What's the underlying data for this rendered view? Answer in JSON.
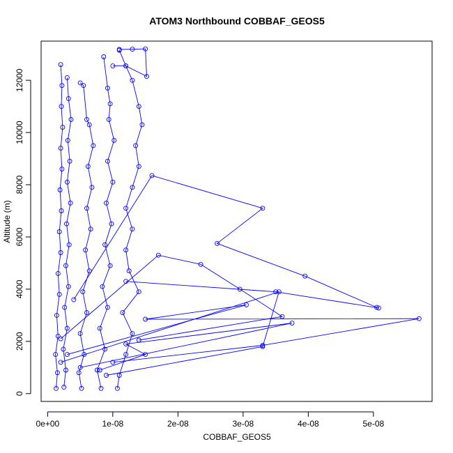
{
  "chart_data": {
    "type": "line",
    "title": "ATOM3 Northbound COBBAF_GEOS5",
    "xlabel": "COBBAF_GEOS5",
    "ylabel": "Altitude (m)",
    "xlim": [
      -1e-09,
      5.9e-08
    ],
    "ylim": [
      -300,
      13500
    ],
    "xticks": [
      0,
      1e-08,
      2e-08,
      3e-08,
      4e-08,
      5e-08
    ],
    "xtick_labels": [
      "0e+00",
      "1e-08",
      "2e-08",
      "3e-08",
      "4e-08",
      "5e-08"
    ],
    "yticks": [
      0,
      2000,
      4000,
      6000,
      8000,
      10000,
      12000
    ],
    "ytick_labels": [
      "0",
      "2000",
      "4000",
      "6000",
      "8000",
      "10000",
      "12000"
    ],
    "grid": false,
    "legend": "none",
    "series_color": "#0000ff",
    "marker": "open-circle",
    "series": [
      {
        "values": [
          [
            1.3e-09,
            200
          ],
          [
            1.5e-09,
            800
          ],
          [
            1.2e-09,
            1500
          ],
          [
            1.6e-09,
            2200
          ],
          [
            1.4e-09,
            3000
          ],
          [
            1.8e-09,
            3800
          ],
          [
            1.6e-09,
            4600
          ],
          [
            2e-09,
            5400
          ],
          [
            1.8e-09,
            6200
          ],
          [
            2.1e-09,
            7000
          ],
          [
            1.9e-09,
            7800
          ],
          [
            2.2e-09,
            8600
          ],
          [
            2e-09,
            9400
          ],
          [
            2.3e-09,
            10200
          ],
          [
            2.1e-09,
            11000
          ],
          [
            2.2e-09,
            11800
          ],
          [
            2e-09,
            12600
          ]
        ]
      },
      {
        "values": [
          [
            2.5e-09,
            250
          ],
          [
            2.8e-09,
            900
          ],
          [
            2.4e-09,
            1700
          ],
          [
            3e-09,
            2500
          ],
          [
            2.6e-09,
            3300
          ],
          [
            3.2e-09,
            4100
          ],
          [
            2.8e-09,
            4900
          ],
          [
            3.3e-09,
            5700
          ],
          [
            2.9e-09,
            6500
          ],
          [
            3.5e-09,
            7300
          ],
          [
            3e-09,
            8100
          ],
          [
            3.4e-09,
            8900
          ],
          [
            3.1e-09,
            9700
          ],
          [
            3.6e-09,
            10500
          ],
          [
            3.2e-09,
            11300
          ],
          [
            3e-09,
            12100
          ]
        ]
      },
      {
        "values": [
          [
            5.2e-09,
            200
          ],
          [
            4.8e-09,
            800
          ],
          [
            5.6e-09,
            1500
          ],
          [
            5e-09,
            2300
          ],
          [
            6e-09,
            3100
          ],
          [
            5.4e-09,
            3900
          ],
          [
            6.4e-09,
            4700
          ],
          [
            5.8e-09,
            5500
          ],
          [
            6.6e-09,
            6300
          ],
          [
            6e-09,
            7100
          ],
          [
            6.8e-09,
            7900
          ],
          [
            6.2e-09,
            8700
          ],
          [
            7e-09,
            9500
          ],
          [
            6.4e-09,
            10300
          ],
          [
            6e-09,
            10500
          ],
          [
            5.5e-09,
            11800
          ],
          [
            5e-09,
            11900
          ]
        ]
      },
      {
        "values": [
          [
            8.2e-09,
            200
          ],
          [
            7.6e-09,
            900
          ],
          [
            8.8e-09,
            1700
          ],
          [
            8e-09,
            2500
          ],
          [
            9.2e-09,
            3300
          ],
          [
            8.4e-09,
            4100
          ],
          [
            9.6e-09,
            4900
          ],
          [
            8.8e-09,
            5700
          ],
          [
            9.8e-09,
            6500
          ],
          [
            9e-09,
            7300
          ],
          [
            1e-08,
            8100
          ],
          [
            9.2e-09,
            8900
          ],
          [
            1.02e-08,
            9700
          ],
          [
            9.4e-09,
            10500
          ],
          [
            9.6e-09,
            11100
          ],
          [
            9.2e-09,
            11700
          ],
          [
            8.6e-09,
            12900
          ]
        ]
      },
      {
        "values": [
          [
            1.07e-08,
            200
          ],
          [
            1.1e-08,
            700
          ],
          [
            1.2e-08,
            1500
          ],
          [
            1.3e-08,
            2300
          ],
          [
            1.15e-08,
            3100
          ],
          [
            1.4e-08,
            3900
          ],
          [
            1.25e-08,
            4700
          ],
          [
            1.2e-08,
            5500
          ],
          [
            1.3e-08,
            6300
          ],
          [
            1.2e-08,
            7100
          ],
          [
            1.3e-08,
            7900
          ],
          [
            1.4e-08,
            8700
          ],
          [
            1.35e-08,
            9500
          ],
          [
            1.45e-08,
            10300
          ],
          [
            1.4e-08,
            11000
          ],
          [
            1.3e-08,
            12000
          ],
          [
            1.2e-08,
            12550
          ],
          [
            1.1e-08,
            13150
          ]
        ]
      },
      {
        "values": [
          [
            1.1e-08,
            13180
          ],
          [
            1.3e-08,
            13190
          ],
          [
            1.5e-08,
            13200
          ],
          [
            1.52e-08,
            12150
          ],
          [
            1.2e-08,
            12550
          ],
          [
            1e-08,
            12550
          ]
        ]
      },
      {
        "values": [
          [
            4e-09,
            3600
          ],
          [
            1.6e-08,
            8350
          ],
          [
            3.3e-08,
            7100
          ],
          [
            2.6e-08,
            5750
          ],
          [
            3.95e-08,
            4500
          ],
          [
            5.05e-08,
            3300
          ],
          [
            5.08e-08,
            3280
          ],
          [
            3.5e-08,
            3900
          ],
          [
            1.2e-08,
            4300
          ]
        ]
      },
      {
        "values": [
          [
            2e-09,
            2100
          ],
          [
            1.7e-08,
            5300
          ],
          [
            2.35e-08,
            4950
          ],
          [
            2.95e-08,
            4000
          ],
          [
            3.6e-08,
            2950
          ],
          [
            1.4e-08,
            2050
          ]
        ]
      },
      {
        "values": [
          [
            3e-09,
            1500
          ],
          [
            3.05e-08,
            3400
          ],
          [
            1.5e-08,
            2850
          ],
          [
            5.7e-08,
            2870
          ],
          [
            3.3e-08,
            1850
          ],
          [
            1e-08,
            1200
          ]
        ]
      },
      {
        "values": [
          [
            5e-09,
            1000
          ],
          [
            3.75e-08,
            2700
          ],
          [
            1.2e-08,
            1900
          ],
          [
            1.5e-08,
            1500
          ],
          [
            8e-09,
            900
          ]
        ]
      },
      {
        "values": [
          [
            2e-09,
            1200
          ],
          [
            3.55e-08,
            3900
          ],
          [
            3.3e-08,
            1800
          ],
          [
            9e-09,
            700
          ]
        ]
      }
    ]
  }
}
